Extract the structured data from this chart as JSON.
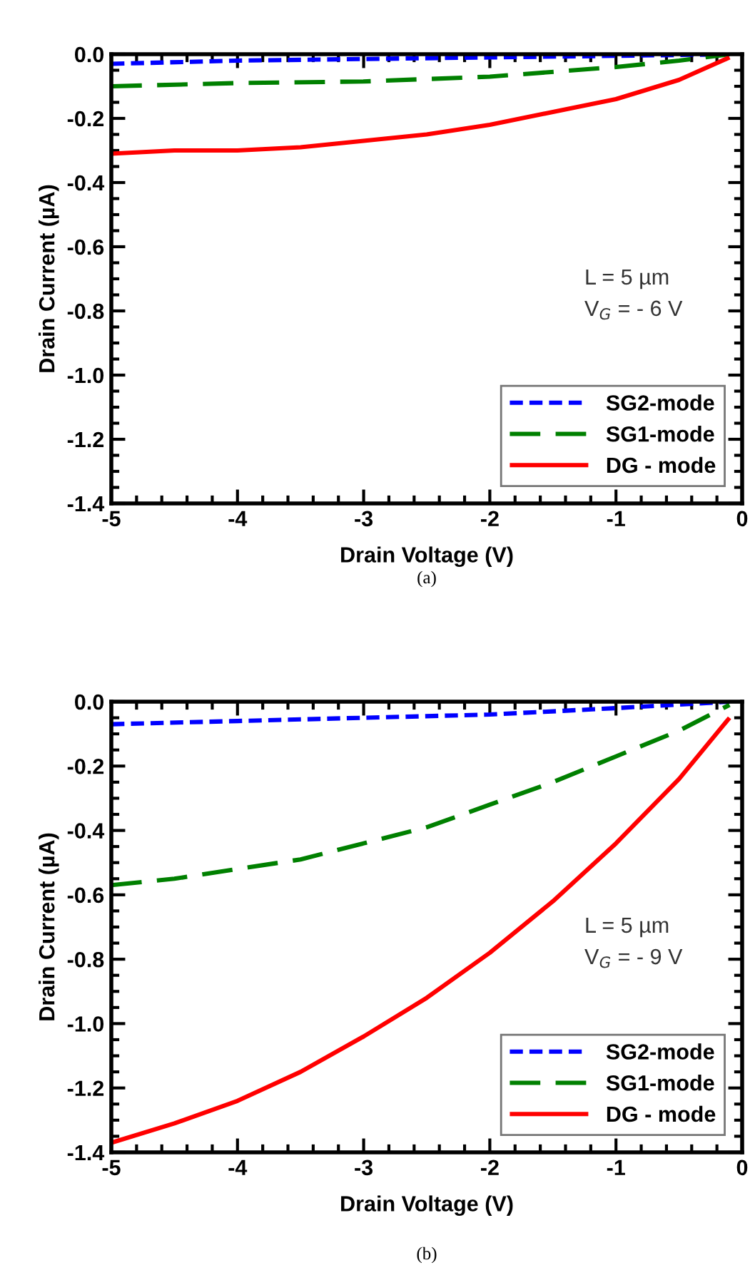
{
  "chart_data": [
    {
      "type": "line",
      "xlabel": "Drain Voltage (V)",
      "ylabel": "Drain Current (µA)",
      "xlim": [
        -5,
        0
      ],
      "ylim": [
        -1.4,
        0.0
      ],
      "xticks": [
        -5,
        -4,
        -3,
        -2,
        -1,
        0
      ],
      "yticks": [
        {
          "value": -1.4,
          "label": "-1.4"
        },
        {
          "value": -1.2,
          "label": "-1.2"
        },
        {
          "value": -1.0,
          "label": "-1.0"
        },
        {
          "value": -0.8,
          "label": "-0.8"
        },
        {
          "value": -0.6,
          "label": "-0.6"
        },
        {
          "value": -0.4,
          "label": "-0.4"
        },
        {
          "value": -0.2,
          "label": "-0.2"
        },
        {
          "value": 0.0,
          "label": "0.0"
        }
      ],
      "legend": "bottom right",
      "grid": false,
      "annotations": [
        "L = 5 µm",
        "V$_{G}$ = - 6 V",
        "(a)"
      ],
      "series": [
        {
          "name": "SG2-mode",
          "color": "#0000ff",
          "line_style": "dotted",
          "x": [
            -5,
            -4,
            -3,
            -2,
            -1,
            -0.1
          ],
          "values": [
            -0.03,
            -0.02,
            -0.015,
            -0.01,
            -0.005,
            0.0
          ]
        },
        {
          "name": "SG1-mode",
          "color": "#008000",
          "line_style": "dashed",
          "x": [
            -5,
            -4,
            -3,
            -2,
            -1,
            -0.5,
            -0.1
          ],
          "values": [
            -0.1,
            -0.09,
            -0.085,
            -0.07,
            -0.04,
            -0.02,
            0.0
          ]
        },
        {
          "name": "DG - mode",
          "color": "#ff0000",
          "line_style": "solid",
          "x": [
            -5,
            -4.5,
            -4,
            -3.5,
            -3,
            -2.5,
            -2,
            -1.5,
            -1,
            -0.5,
            -0.1
          ],
          "values": [
            -0.31,
            -0.3,
            -0.3,
            -0.29,
            -0.27,
            -0.25,
            -0.22,
            -0.18,
            -0.14,
            -0.08,
            -0.01
          ]
        }
      ]
    },
    {
      "type": "line",
      "xlabel": "Drain Voltage (V)",
      "ylabel": "Drain Current (µA)",
      "xlim": [
        -5,
        0
      ],
      "ylim": [
        -1.4,
        0.0
      ],
      "xticks": [
        -5,
        -4,
        -3,
        -2,
        -1,
        0
      ],
      "yticks": [
        {
          "value": -1.4,
          "label": "-1.4"
        },
        {
          "value": -1.2,
          "label": "-1.2"
        },
        {
          "value": -1.0,
          "label": "-1.0"
        },
        {
          "value": -0.8,
          "label": "-0.8"
        },
        {
          "value": -0.6,
          "label": "-0.6"
        },
        {
          "value": -0.4,
          "label": "-0.4"
        },
        {
          "value": -0.2,
          "label": "-0.2"
        },
        {
          "value": 0.0,
          "label": "0.0"
        }
      ],
      "legend": "bottom right",
      "grid": false,
      "annotations": [
        "L = 5 µm",
        "V$_{G}$ = - 9 V",
        "(b)"
      ],
      "series": [
        {
          "name": "SG2-mode",
          "color": "#0000ff",
          "line_style": "dotted",
          "x": [
            -5,
            -4,
            -3,
            -2,
            -1,
            -0.1
          ],
          "values": [
            -0.07,
            -0.06,
            -0.05,
            -0.04,
            -0.02,
            0.0
          ]
        },
        {
          "name": "SG1-mode",
          "color": "#008000",
          "line_style": "dashed",
          "x": [
            -5,
            -4.5,
            -4,
            -3.5,
            -3,
            -2.5,
            -2,
            -1.5,
            -1,
            -0.5,
            -0.1
          ],
          "values": [
            -0.57,
            -0.55,
            -0.52,
            -0.49,
            -0.44,
            -0.39,
            -0.32,
            -0.25,
            -0.17,
            -0.09,
            -0.01
          ]
        },
        {
          "name": "DG - mode",
          "color": "#ff0000",
          "line_style": "solid",
          "x": [
            -5,
            -4.5,
            -4,
            -3.5,
            -3,
            -2.5,
            -2,
            -1.5,
            -1,
            -0.5,
            -0.1
          ],
          "values": [
            -1.37,
            -1.31,
            -1.24,
            -1.15,
            -1.04,
            -0.92,
            -0.78,
            -0.62,
            -0.44,
            -0.24,
            -0.05
          ]
        }
      ]
    }
  ]
}
